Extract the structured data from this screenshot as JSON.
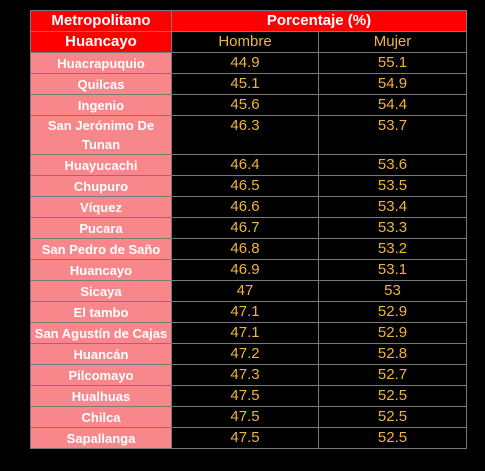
{
  "header": {
    "region_line1": "Metropolitano",
    "region_line2": "Huancayo",
    "percentage": "Porcentaje (%)",
    "male": "Hombre",
    "female": "Mujer"
  },
  "rows": [
    {
      "name": "Huacrapuquio",
      "hombre": "44.9",
      "mujer": "55.1"
    },
    {
      "name": "Quilcas",
      "hombre": "45.1",
      "mujer": "54.9"
    },
    {
      "name": "Ingenio",
      "hombre": "45.6",
      "mujer": "54.4"
    },
    {
      "name": "San Jerónimo De Tunan",
      "hombre": "46.3",
      "mujer": "53.7"
    },
    {
      "name": "Huayucachi",
      "hombre": "46.4",
      "mujer": "53.6"
    },
    {
      "name": "Chupuro",
      "hombre": "46.5",
      "mujer": "53.5"
    },
    {
      "name": "Víquez",
      "hombre": "46.6",
      "mujer": "53.4"
    },
    {
      "name": "Pucara",
      "hombre": "46.7",
      "mujer": "53.3"
    },
    {
      "name": "San Pedro de Saño",
      "hombre": "46.8",
      "mujer": "53.2"
    },
    {
      "name": "Huancayo",
      "hombre": "46.9",
      "mujer": "53.1"
    },
    {
      "name": "Sicaya",
      "hombre": "47",
      "mujer": "53"
    },
    {
      "name": "El tambo",
      "hombre": "47.1",
      "mujer": "52.9"
    },
    {
      "name": "San Agustín de Cajas",
      "hombre": "47.1",
      "mujer": "52.9"
    },
    {
      "name": "Huancán",
      "hombre": "47.2",
      "mujer": "52.8"
    },
    {
      "name": "Pilcomayo",
      "hombre": "47.3",
      "mujer": "52.7"
    },
    {
      "name": "Hualhuas",
      "hombre": "47.5",
      "mujer": "52.5"
    },
    {
      "name": "Chilca",
      "hombre": "47.5",
      "mujer": "52.5"
    },
    {
      "name": "Sapallanga",
      "hombre": "47.5",
      "mujer": "52.5"
    }
  ],
  "colors": {
    "header_red": "#ff0000",
    "name_cell_pink": "#f7878a",
    "value_text_orange": "#f0b43c",
    "background": "#000000"
  }
}
